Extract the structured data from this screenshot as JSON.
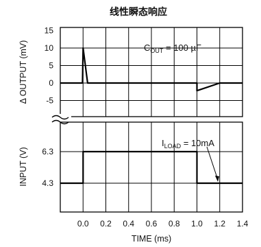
{
  "chart_data": [
    {
      "type": "line",
      "title": "线性瞬态响应",
      "annotation": {
        "main": "C",
        "sub": "OUT",
        "rest": " = 100 µF"
      },
      "ylabel": "Δ OUTPUT (mV)",
      "ylim": [
        -8,
        15
      ],
      "yticks": [
        "15",
        "10",
        "5",
        "0",
        "-5"
      ],
      "xlim": [
        -0.2,
        1.4
      ],
      "series": [
        {
          "x": [
            -0.2,
            -0.005,
            0.0,
            0.04,
            1.0,
            1.0,
            1.2,
            1.4
          ],
          "y": [
            0,
            0,
            10,
            0,
            0,
            -2.2,
            0,
            0
          ]
        }
      ]
    },
    {
      "type": "line",
      "annotation": {
        "main": "I",
        "sub": "LOAD",
        "rest": " = 10mA"
      },
      "ylabel": "INPUT (V)",
      "yticks": [
        "6.3",
        "4.3"
      ],
      "xlabel": "TIME (ms)",
      "xticks": [
        "0.0",
        "0.2",
        "0.4",
        "0.6",
        "0.8",
        "1.0",
        "1.2",
        "1.4"
      ],
      "xlim": [
        -0.2,
        1.4
      ],
      "series": [
        {
          "x": [
            -0.2,
            0.0,
            0.0,
            1.0,
            1.0,
            1.4
          ],
          "y": [
            4.3,
            4.3,
            6.3,
            6.3,
            4.3,
            4.3
          ]
        }
      ]
    }
  ]
}
